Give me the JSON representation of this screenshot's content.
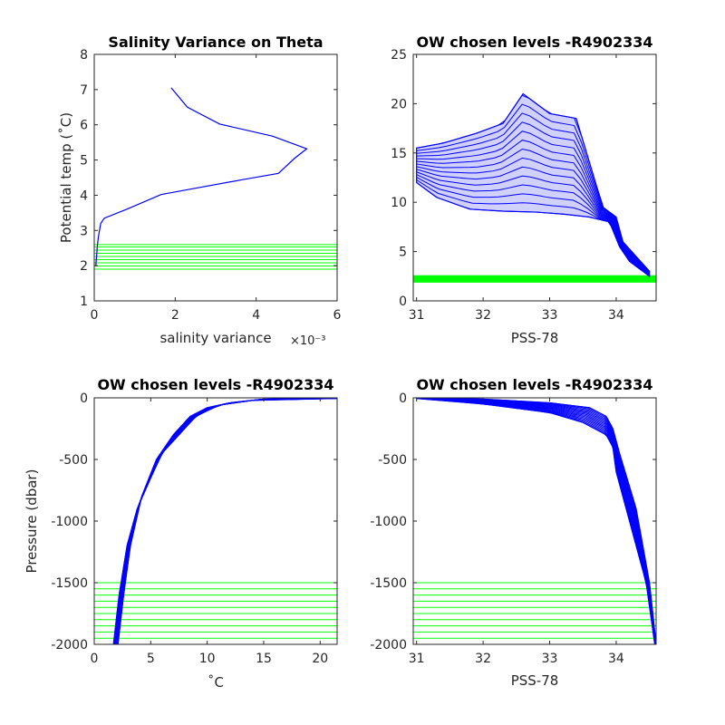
{
  "chart_data": [
    {
      "id": "tl",
      "type": "line",
      "title": "Salinity Variance on Theta",
      "xlabel": "salinity variance",
      "x_exponent": "×10⁻³",
      "ylabel": "Potential temp (˚C)",
      "xlim": [
        0,
        6
      ],
      "ylim": [
        1,
        8
      ],
      "xticks": [
        0,
        2,
        4,
        6
      ],
      "yticks": [
        1,
        2,
        3,
        4,
        5,
        6,
        7,
        8
      ],
      "series": [
        {
          "color": "#0000ff",
          "x": [
            1.9,
            2.3,
            3.1,
            4.4,
            5.25,
            4.95,
            4.55,
            3.7,
            2.5,
            1.65,
            0.8,
            0.25,
            0.16,
            0.13,
            0.1,
            0.08,
            0.06,
            0.04
          ],
          "y": [
            7.05,
            6.5,
            6.02,
            5.68,
            5.32,
            5.05,
            4.62,
            4.45,
            4.2,
            4.02,
            3.6,
            3.35,
            3.2,
            3.0,
            2.8,
            2.6,
            2.3,
            2.0
          ]
        }
      ],
      "hlines": {
        "color": "#00ff00",
        "values": [
          1.9,
          1.99,
          2.08,
          2.17,
          2.26,
          2.35,
          2.44,
          2.53,
          2.6
        ]
      }
    },
    {
      "id": "tr",
      "type": "line",
      "title": "OW chosen levels -R4902334",
      "xlabel": "PSS-78",
      "ylabel": "",
      "xlim": [
        30.95,
        34.6
      ],
      "ylim": [
        0,
        25
      ],
      "xticks": [
        31,
        32,
        33,
        34
      ],
      "yticks": [
        0,
        5,
        10,
        15,
        20,
        25
      ],
      "envelope": {
        "color": "#0000ff",
        "upper_x": [
          31.0,
          31.4,
          31.9,
          32.3,
          32.6,
          33.0,
          33.4,
          33.8,
          34.0,
          34.1,
          34.3,
          34.5
        ],
        "upper_y": [
          15.5,
          16.0,
          17.0,
          18.0,
          21.0,
          19.0,
          18.5,
          9.5,
          8.5,
          6.0,
          4.5,
          3.0
        ],
        "lower_x": [
          34.5,
          34.2,
          34.05,
          33.9,
          33.6,
          33.2,
          32.8,
          32.3,
          31.8,
          31.3,
          31.0
        ],
        "lower_y": [
          2.5,
          4.0,
          5.5,
          8.0,
          8.5,
          8.8,
          9.0,
          9.1,
          9.3,
          10.5,
          12.0
        ]
      },
      "band": {
        "color": "#00ff00",
        "y_min": 1.85,
        "y_max": 2.6
      }
    },
    {
      "id": "bl",
      "type": "line",
      "title": "OW chosen levels -R4902334",
      "xlabel": "˚C",
      "ylabel": "Pressure (dbar)",
      "xlim": [
        0,
        21.5
      ],
      "ylim": [
        -2000,
        0
      ],
      "xticks": [
        0,
        5,
        10,
        15,
        20
      ],
      "yticks": [
        0,
        -500,
        -1000,
        -1500,
        -2000
      ],
      "envelope": {
        "color": "#0000ff",
        "upper_x": [
          21.5,
          15.0,
          12.0,
          10.0,
          8.5,
          7.0,
          5.5,
          4.2,
          3.2,
          2.6,
          2.1
        ],
        "upper_y": [
          0,
          -10,
          -40,
          -80,
          -150,
          -300,
          -500,
          -800,
          -1200,
          -1600,
          -2000
        ],
        "lower_x": [
          1.7,
          2.2,
          2.9,
          3.8,
          5.0,
          6.0,
          7.5,
          9.0,
          11.0,
          14.0,
          21.5
        ],
        "lower_y": [
          -2000,
          -1600,
          -1200,
          -900,
          -650,
          -450,
          -300,
          -150,
          -60,
          -20,
          -5
        ]
      },
      "hlines": {
        "color": "#00ff00",
        "values": [
          -1500,
          -1550,
          -1600,
          -1650,
          -1700,
          -1750,
          -1800,
          -1850,
          -1900,
          -1950
        ]
      }
    },
    {
      "id": "br",
      "type": "line",
      "title": "OW chosen levels -R4902334",
      "xlabel": "PSS-78",
      "ylabel": "",
      "xlim": [
        30.95,
        34.6
      ],
      "ylim": [
        -2000,
        0
      ],
      "xticks": [
        31,
        32,
        33,
        34
      ],
      "yticks": [
        0,
        -500,
        -1000,
        -1500,
        -2000
      ],
      "envelope": {
        "color": "#0000ff",
        "upper_x": [
          31.0,
          32.0,
          33.0,
          33.6,
          33.85,
          33.95,
          34.05,
          34.3,
          34.5,
          34.6
        ],
        "upper_y": [
          0,
          -10,
          -40,
          -80,
          -150,
          -250,
          -450,
          -900,
          -1500,
          -2000
        ],
        "lower_x": [
          34.58,
          34.45,
          34.2,
          34.0,
          33.95,
          33.85,
          33.5,
          33.0,
          32.0,
          31.0
        ],
        "lower_y": [
          -2000,
          -1500,
          -1000,
          -600,
          -400,
          -300,
          -200,
          -120,
          -50,
          -5
        ]
      },
      "hlines": {
        "color": "#00ff00",
        "values": [
          -1500,
          -1550,
          -1600,
          -1650,
          -1700,
          -1750,
          -1800,
          -1850,
          -1900,
          -1950
        ]
      }
    }
  ]
}
